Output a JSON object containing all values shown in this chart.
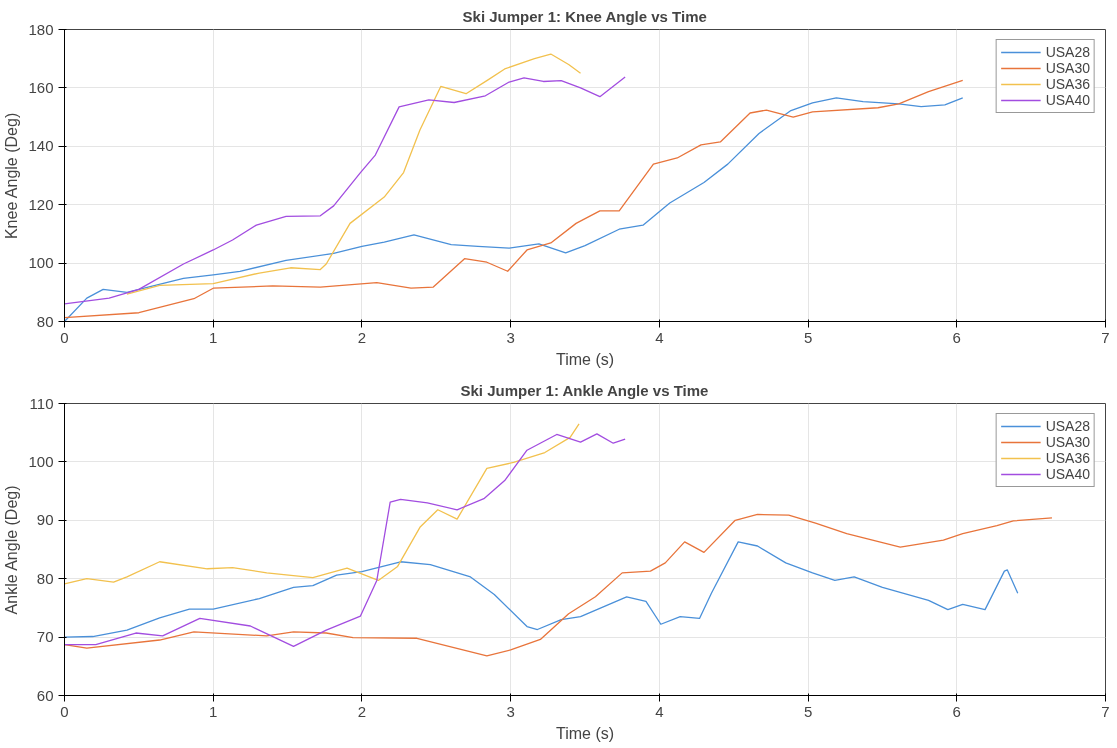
{
  "chart_data": [
    {
      "type": "line",
      "title": "Ski Jumper 1: Knee Angle vs Time",
      "xlabel": "Time (s)",
      "ylabel": "Knee Angle (Deg)",
      "xlim": [
        0,
        7
      ],
      "ylim": [
        80,
        180
      ],
      "xticks": [
        0,
        1,
        2,
        3,
        4,
        5,
        6,
        7
      ],
      "yticks": [
        80,
        100,
        120,
        140,
        160,
        180
      ],
      "grid": true,
      "legend": "top right",
      "marker": "none",
      "line_style": "solid",
      "series": [
        {
          "name": "USA28",
          "color": "#4a90d9",
          "x": [
            0,
            0.15,
            0.26,
            0.42,
            0.8,
            1.0,
            1.18,
            1.49,
            1.81,
            2.0,
            2.15,
            2.35,
            2.6,
            2.78,
            2.99,
            3.19,
            3.37,
            3.5,
            3.73,
            3.89,
            4.07,
            4.3,
            4.46,
            4.67,
            4.88,
            5.03,
            5.19,
            5.37,
            5.61,
            5.76,
            5.92,
            6.04
          ],
          "values": [
            80,
            88,
            91,
            90,
            94.8,
            96,
            97.2,
            100.9,
            103.3,
            105.7,
            107.2,
            109.7,
            106.3,
            105.7,
            105.1,
            106.6,
            103.5,
            106,
            111.6,
            113,
            120.6,
            127.6,
            133.9,
            144.4,
            152.1,
            154.9,
            156.6,
            155.3,
            154.5,
            153.6,
            154.2,
            156.6
          ]
        },
        {
          "name": "USA30",
          "color": "#e8743b",
          "x": [
            0,
            0.5,
            0.87,
            1.0,
            1.4,
            1.72,
            2.1,
            2.33,
            2.48,
            2.69,
            2.84,
            2.98,
            3.11,
            3.27,
            3.44,
            3.6,
            3.73,
            3.96,
            4.12,
            4.28,
            4.41,
            4.61,
            4.72,
            4.9,
            5.03,
            5.47,
            5.61,
            5.81,
            6.04
          ],
          "values": [
            81.3,
            83,
            87.8,
            91.4,
            92.2,
            91.8,
            93.3,
            91.4,
            91.8,
            101.5,
            100.3,
            97.2,
            104.5,
            106.9,
            113.6,
            117.9,
            117.9,
            133.9,
            136,
            140.5,
            141.5,
            151.4,
            152.4,
            150,
            151.8,
            153.2,
            154.5,
            158.7,
            162.6
          ]
        },
        {
          "name": "USA36",
          "color": "#f2c14e",
          "x": [
            0.42,
            0.64,
            1.0,
            1.31,
            1.52,
            1.72,
            1.76,
            1.92,
            2.15,
            2.28,
            2.39,
            2.53,
            2.7,
            2.84,
            2.96,
            3.16,
            3.27,
            3.39,
            3.47
          ],
          "values": [
            89.4,
            92.4,
            93,
            96.6,
            98.4,
            97.8,
            99.7,
            113.6,
            122.6,
            131,
            145.6,
            160.5,
            158,
            162.5,
            166.5,
            170,
            171.6,
            168,
            165
          ]
        },
        {
          "name": "USA40",
          "color": "#a24de0",
          "x": [
            0,
            0.3,
            0.5,
            0.8,
            1.0,
            1.13,
            1.29,
            1.49,
            1.72,
            1.81,
            1.99,
            2.09,
            2.25,
            2.45,
            2.62,
            2.83,
            2.99,
            3.09,
            3.22,
            3.34,
            3.47,
            3.6,
            3.77
          ],
          "values": [
            86,
            88,
            91,
            99.7,
            104.5,
            107.9,
            113,
            116,
            116.2,
            119.6,
            131,
            137,
            153.5,
            155.9,
            155,
            157.3,
            162,
            163.4,
            162.2,
            162.5,
            160,
            157,
            163.7
          ]
        }
      ]
    },
    {
      "type": "line",
      "title": "Ski Jumper 1: Ankle Angle vs Time",
      "xlabel": "Time (s)",
      "ylabel": "Ankle Angle (Deg)",
      "xlim": [
        0,
        7
      ],
      "ylim": [
        60,
        110
      ],
      "xticks": [
        0,
        1,
        2,
        3,
        4,
        5,
        6,
        7
      ],
      "yticks": [
        60,
        70,
        80,
        90,
        100,
        110
      ],
      "grid": true,
      "legend": "top right",
      "marker": "none",
      "line_style": "solid",
      "series": [
        {
          "name": "USA28",
          "color": "#4a90d9",
          "x": [
            0,
            0.19,
            0.42,
            0.64,
            0.84,
            1.0,
            1.31,
            1.54,
            1.67,
            1.83,
            2.0,
            2.26,
            2.46,
            2.73,
            2.89,
            3.11,
            3.18,
            3.34,
            3.47,
            3.78,
            3.91,
            4.01,
            4.14,
            4.27,
            4.35,
            4.53,
            4.66,
            4.85,
            5.03,
            5.18,
            5.31,
            5.5,
            5.81,
            5.94,
            6.04,
            6.19,
            6.32,
            6.34,
            6.41
          ],
          "values": [
            70,
            70.1,
            71.2,
            73.3,
            74.8,
            74.8,
            76.6,
            78.5,
            78.8,
            80.6,
            81.2,
            82.9,
            82.4,
            80.3,
            77.3,
            71.8,
            71.3,
            73,
            73.5,
            76.9,
            76.1,
            72.2,
            73.5,
            73.2,
            77.5,
            86.3,
            85.6,
            82.7,
            81,
            79.7,
            80.3,
            78.5,
            76.3,
            74.7,
            75.6,
            74.7,
            81.3,
            81.5,
            77.5
          ]
        },
        {
          "name": "USA30",
          "color": "#e8743b",
          "x": [
            0,
            0.15,
            0.64,
            0.87,
            1.36,
            1.54,
            1.76,
            1.94,
            2.37,
            2.84,
            3.0,
            3.2,
            3.39,
            3.57,
            3.75,
            3.94,
            4.04,
            4.17,
            4.3,
            4.51,
            4.66,
            4.87,
            5.05,
            5.26,
            5.62,
            5.91,
            6.04,
            6.27,
            6.38,
            6.64
          ],
          "values": [
            68.7,
            68.1,
            69.5,
            70.9,
            70.2,
            70.9,
            70.7,
            69.9,
            69.8,
            66.8,
            67.8,
            69.6,
            74,
            76.9,
            81,
            81.3,
            82.7,
            86.3,
            84.5,
            90,
            91,
            90.9,
            89.5,
            87.7,
            85.4,
            86.6,
            87.7,
            89.1,
            89.9,
            90.4
          ]
        },
        {
          "name": "USA36",
          "color": "#f2c14e",
          "x": [
            0,
            0.15,
            0.33,
            0.42,
            0.64,
            0.96,
            1.13,
            1.36,
            1.67,
            1.9,
            2.11,
            2.24,
            2.39,
            2.51,
            2.64,
            2.84,
            3.02,
            3.23,
            3.4,
            3.46
          ],
          "values": [
            79.1,
            80,
            79.4,
            80.3,
            82.9,
            81.7,
            81.9,
            81,
            80.2,
            81.8,
            79.7,
            82.1,
            88.8,
            91.8,
            90.2,
            98.9,
            99.9,
            101.6,
            104.2,
            106.5
          ]
        },
        {
          "name": "USA40",
          "color": "#a24de0",
          "x": [
            0,
            0.21,
            0.48,
            0.66,
            0.91,
            1.25,
            1.54,
            1.76,
            1.99,
            2.1,
            2.19,
            2.26,
            2.44,
            2.64,
            2.82,
            2.96,
            3.11,
            3.31,
            3.47,
            3.58,
            3.69,
            3.77
          ],
          "values": [
            68.7,
            68.7,
            70.7,
            70.2,
            73.2,
            71.9,
            68.4,
            71.2,
            73.6,
            79.7,
            93.1,
            93.6,
            93,
            91.8,
            93.7,
            96.8,
            102,
            104.7,
            103.4,
            104.8,
            103.2,
            103.9
          ]
        }
      ]
    }
  ]
}
